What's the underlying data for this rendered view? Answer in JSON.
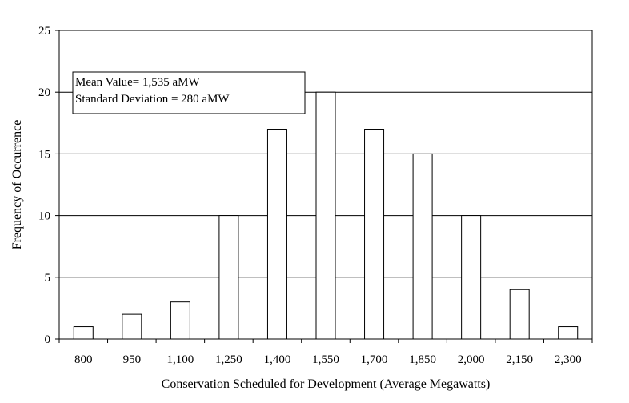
{
  "chart_data": {
    "type": "bar",
    "xlabel": "Conservation Scheduled for Development (Average Megawatts)",
    "ylabel": "Frequency of Occurrence",
    "categories": [
      "800",
      "950",
      "1,100",
      "1,250",
      "1,400",
      "1,550",
      "1,700",
      "1,850",
      "2,000",
      "2,150",
      "2,300"
    ],
    "values": [
      1,
      2,
      3,
      10,
      17,
      20,
      17,
      15,
      10,
      4,
      1
    ],
    "ylim": [
      0,
      25
    ],
    "yticks": [
      "0",
      "5",
      "10",
      "15",
      "20",
      "25"
    ],
    "grid": true,
    "bar_color": "#ffffff",
    "annotation": {
      "lines": [
        "Mean Value= 1,535 aMW",
        "Standard Deviation = 280 aMW"
      ]
    }
  }
}
